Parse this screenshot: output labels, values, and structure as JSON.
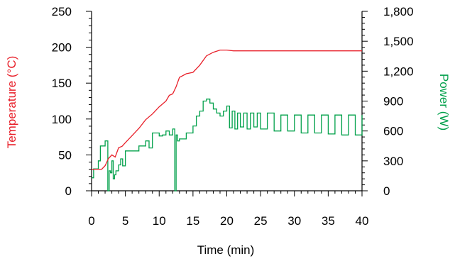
{
  "chart_data": {
    "type": "line",
    "xlabel": "Time (min)",
    "ylabel_left": "Temperature (°C)",
    "ylabel_right": "Power (W)",
    "xlim": [
      0,
      40
    ],
    "ylim_left": [
      0,
      250
    ],
    "ylim_right": [
      0,
      1800
    ],
    "x_ticks": [
      "0",
      "5",
      "10",
      "15",
      "20",
      "25",
      "30",
      "35",
      "40"
    ],
    "y_left_ticks": [
      "0",
      "50",
      "100",
      "150",
      "200",
      "250"
    ],
    "y_right_ticks": [
      "0",
      "300",
      "600",
      "900",
      "1,200",
      "1,500",
      "1,800"
    ],
    "grid": false,
    "colors": {
      "temperature": "#e8202a",
      "power": "#00a04a",
      "axis": "#000000"
    },
    "temperature_series": {
      "axis": "left",
      "x": [
        0,
        1.5,
        2,
        2.5,
        3,
        3.5,
        4,
        4.5,
        5,
        6,
        7,
        8,
        9,
        10,
        11,
        11.5,
        12,
        12.5,
        13,
        14,
        15,
        16,
        17,
        18,
        19,
        20,
        21,
        25,
        30,
        35,
        40
      ],
      "y": [
        30,
        30,
        35,
        45,
        50,
        47,
        60,
        62,
        67,
        77,
        87,
        99,
        107,
        117,
        125,
        133,
        135,
        145,
        158,
        163,
        165,
        175,
        188,
        193,
        196,
        196,
        195,
        195,
        195,
        195,
        195
      ]
    },
    "power_series": {
      "axis": "right",
      "x": [
        0,
        0.3,
        1,
        1.3,
        2,
        2.2,
        2.4,
        2.6,
        2.8,
        3,
        3.2,
        3.4,
        3.6,
        4,
        4.3,
        4.6,
        5,
        6,
        7,
        8,
        8.5,
        9,
        10,
        10.5,
        11,
        11.5,
        12,
        12.3,
        12.5,
        12.7,
        13,
        14,
        15,
        15.5,
        16,
        16.5,
        17,
        17.5,
        18,
        18.5,
        19,
        19.5,
        20,
        20.4,
        20.8,
        21.2,
        21.6,
        22,
        22.5,
        23,
        23.5,
        24,
        24.5,
        25,
        26,
        27,
        28,
        29,
        30,
        31,
        32,
        33,
        34,
        35,
        36,
        37,
        38,
        39,
        40
      ],
      "y": [
        130,
        220,
        300,
        450,
        500,
        500,
        0,
        200,
        180,
        300,
        120,
        160,
        200,
        260,
        320,
        250,
        400,
        400,
        450,
        500,
        430,
        580,
        550,
        560,
        600,
        560,
        620,
        0,
        560,
        500,
        520,
        580,
        650,
        750,
        800,
        900,
        920,
        880,
        820,
        780,
        750,
        800,
        850,
        630,
        800,
        620,
        780,
        640,
        780,
        620,
        780,
        640,
        780,
        620,
        780,
        600,
        760,
        600,
        760,
        580,
        760,
        580,
        760,
        570,
        760,
        560,
        760,
        560,
        760
      ]
    }
  }
}
